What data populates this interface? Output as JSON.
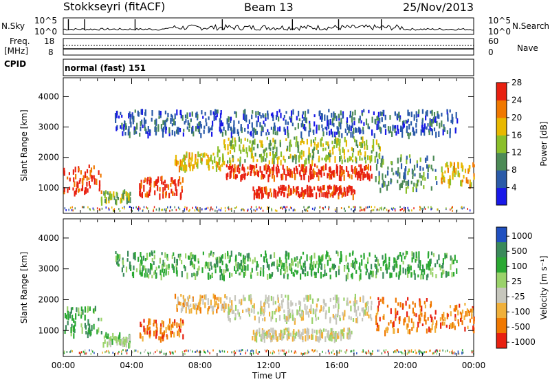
{
  "header": {
    "station": "Stokkseyri (fitACF)",
    "beam": "Beam 13",
    "date": "25/Nov/2013"
  },
  "top_panels": {
    "nsky_label": "N.Sky",
    "nsky_ticks": [
      "10^5",
      "10^0"
    ],
    "nsearch_label": "N.Search",
    "nsearch_ticks": [
      "10^5",
      "10^0"
    ],
    "freq_label": "Freq.",
    "freq_unit": "[MHz]",
    "freq_ticks": [
      "18",
      "8"
    ],
    "nave_label": "Nave",
    "nave_ticks": [
      "60",
      "0"
    ],
    "cpid_label": "CPID",
    "cpid_value": "normal (fast) 151"
  },
  "chart_data": [
    {
      "type": "heatmap",
      "name": "power-panel",
      "ylabel": "Slant Range [km]",
      "yticks": [
        "1000",
        "2000",
        "3000",
        "4000"
      ],
      "ylim": [
        180,
        4600
      ],
      "xlim": [
        0,
        24
      ],
      "colorbar_label": "Power [dB]",
      "colorbar_ticks": [
        "4",
        "8",
        "12",
        "16",
        "20",
        "24",
        "28"
      ],
      "colorbar_colors": [
        "#1818e8",
        "#2a5aa8",
        "#4c8a56",
        "#8abf2a",
        "#e8b800",
        "#f07800",
        "#e82010"
      ],
      "regions": [
        {
          "t": [
            0.0,
            2.2
          ],
          "r": [
            900,
            1800
          ],
          "level": 6
        },
        {
          "t": [
            2.2,
            3.9
          ],
          "r": [
            600,
            950
          ],
          "level": 3
        },
        {
          "t": [
            4.4,
            7.0
          ],
          "r": [
            800,
            1400
          ],
          "level": 6
        },
        {
          "t": [
            6.5,
            9.5
          ],
          "r": [
            1700,
            2200
          ],
          "level": 4
        },
        {
          "t": [
            9.5,
            18.0
          ],
          "r": [
            1400,
            1800
          ],
          "level": 6
        },
        {
          "t": [
            11.0,
            17.0
          ],
          "r": [
            800,
            1100
          ],
          "level": 6
        },
        {
          "t": [
            9.0,
            18.5
          ],
          "r": [
            1900,
            2700
          ],
          "level": 3
        },
        {
          "t": [
            18.2,
            21.8
          ],
          "r": [
            1000,
            2100
          ],
          "level": 2
        },
        {
          "t": [
            22.0,
            24.0
          ],
          "r": [
            1100,
            1900
          ],
          "level": 4
        },
        {
          "t": [
            3.0,
            23.0
          ],
          "r": [
            2800,
            3600
          ],
          "level": 1
        }
      ]
    },
    {
      "type": "heatmap",
      "name": "velocity-panel",
      "ylabel": "Slant Range [km]",
      "yticks": [
        "1000",
        "2000",
        "3000",
        "4000"
      ],
      "ylim": [
        180,
        4600
      ],
      "xlim": [
        0,
        24
      ],
      "colorbar_label": "Velocity [m s⁻¹]",
      "colorbar_ticks": [
        "1000",
        "500",
        "100",
        "25",
        "-25",
        "-100",
        "-500",
        "-1000"
      ],
      "colorbar_colors": [
        "#2050c0",
        "#3a8a5a",
        "#2aa832",
        "#9ad26a",
        "#c6c6bc",
        "#f0b03a",
        "#f07800",
        "#e82010"
      ],
      "regions": [
        {
          "t": [
            0.0,
            2.2
          ],
          "r": [
            900,
            1800
          ],
          "level": 2
        },
        {
          "t": [
            2.2,
            3.9
          ],
          "r": [
            600,
            950
          ],
          "level": 3
        },
        {
          "t": [
            4.4,
            7.0
          ],
          "r": [
            800,
            1400
          ],
          "level": 6
        },
        {
          "t": [
            6.5,
            9.5
          ],
          "r": [
            1700,
            2200
          ],
          "level": 5
        },
        {
          "t": [
            9.5,
            18.0
          ],
          "r": [
            1400,
            2200
          ],
          "level": 4
        },
        {
          "t": [
            11.0,
            17.0
          ],
          "r": [
            800,
            1100
          ],
          "level": 4
        },
        {
          "t": [
            18.2,
            21.8
          ],
          "r": [
            1000,
            2100
          ],
          "level": 6
        },
        {
          "t": [
            22.0,
            24.0
          ],
          "r": [
            1100,
            1900
          ],
          "level": 6
        },
        {
          "t": [
            3.0,
            23.0
          ],
          "r": [
            2800,
            3600
          ],
          "level": 2
        }
      ]
    }
  ],
  "x_axis": {
    "label": "Time UT",
    "ticks": [
      "00:00",
      "04:00",
      "08:00",
      "12:00",
      "16:00",
      "20:00",
      "00:00"
    ]
  }
}
